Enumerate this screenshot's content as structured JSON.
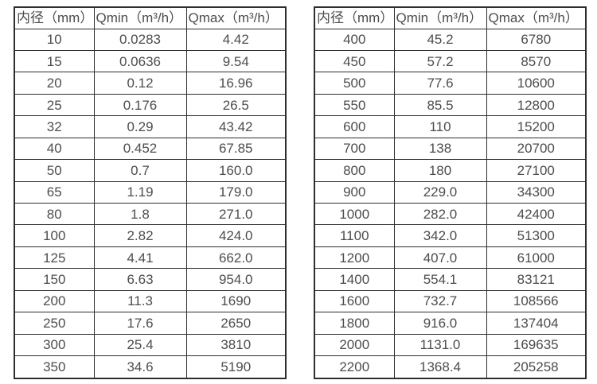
{
  "page": {
    "background": "#ffffff",
    "text_color": "#4d4d4d",
    "border_color": "#2e2e2e"
  },
  "tables": [
    {
      "name": "flow-range-table-small-diameters",
      "headers": [
        "内径（mm）",
        "Qmin（m³/h）",
        "Qmax（m³/h）"
      ],
      "rows": [
        [
          "10",
          "0.0283",
          "4.42"
        ],
        [
          "15",
          "0.0636",
          "9.54"
        ],
        [
          "20",
          "0.12",
          "16.96"
        ],
        [
          "25",
          "0.176",
          "26.5"
        ],
        [
          "32",
          "0.29",
          "43.42"
        ],
        [
          "40",
          "0.452",
          "67.85"
        ],
        [
          "50",
          "0.7",
          "160.0"
        ],
        [
          "65",
          "1.19",
          "179.0"
        ],
        [
          "80",
          "1.8",
          "271.0"
        ],
        [
          "100",
          "2.82",
          "424.0"
        ],
        [
          "125",
          "4.41",
          "662.0"
        ],
        [
          "150",
          "6.63",
          "954.0"
        ],
        [
          "200",
          "11.3",
          "1690"
        ],
        [
          "250",
          "17.6",
          "2650"
        ],
        [
          "300",
          "25.4",
          "3810"
        ],
        [
          "350",
          "34.6",
          "5190"
        ]
      ]
    },
    {
      "name": "flow-range-table-large-diameters",
      "headers": [
        "内径（mm）",
        "Qmin（m³/h）",
        "Qmax（m³/h）"
      ],
      "rows": [
        [
          "400",
          "45.2",
          "6780"
        ],
        [
          "450",
          "57.2",
          "8570"
        ],
        [
          "500",
          "77.6",
          "10600"
        ],
        [
          "550",
          "85.5",
          "12800"
        ],
        [
          "600",
          "110",
          "15200"
        ],
        [
          "700",
          "138",
          "20700"
        ],
        [
          "800",
          "180",
          "27100"
        ],
        [
          "900",
          "229.0",
          "34300"
        ],
        [
          "1000",
          "282.0",
          "42400"
        ],
        [
          "1100",
          "342.0",
          "51300"
        ],
        [
          "1200",
          "407.0",
          "61000"
        ],
        [
          "1400",
          "554.1",
          "83121"
        ],
        [
          "1600",
          "732.7",
          "108566"
        ],
        [
          "1800",
          "916.0",
          "137404"
        ],
        [
          "2000",
          "1131.0",
          "169635"
        ],
        [
          "2200",
          "1368.4",
          "205258"
        ]
      ]
    }
  ]
}
